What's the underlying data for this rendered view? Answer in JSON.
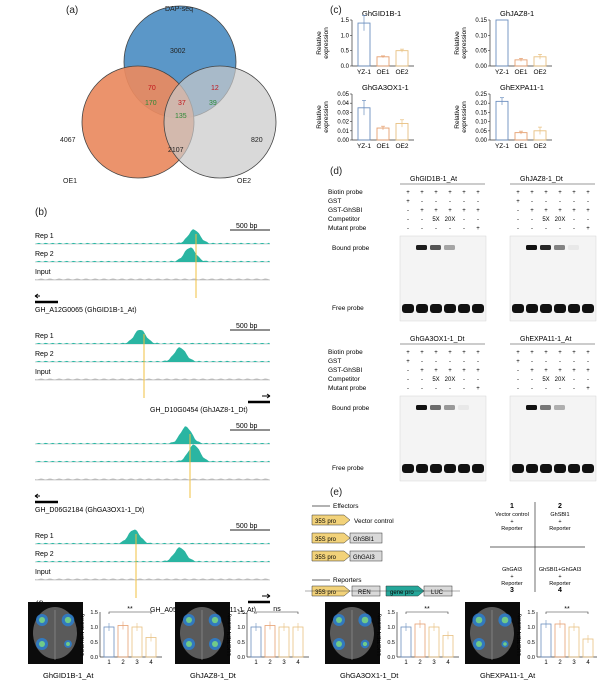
{
  "panels": {
    "a": "(a)",
    "b": "(b)",
    "c": "(c)",
    "d": "(d)",
    "e": "(e)",
    "f": "(f)"
  },
  "venn": {
    "sets": [
      "DAP-seq",
      "OE1",
      "OE2"
    ],
    "colors": {
      "dap": "#5b97c8",
      "oe1": "#e98a5f",
      "oe2": "#c9c9c9"
    },
    "regions": {
      "dap_only": "3002",
      "oe1_only": "4067",
      "oe2_only": "820",
      "dap_oe1_a": "70",
      "dap_oe1_b": "170",
      "dap_oe2_a": "12",
      "dap_oe2_b": "39",
      "all_a": "37",
      "all_b": "135",
      "oe1_oe2": "2107"
    }
  },
  "tracks": {
    "groups": [
      {
        "rows": [
          "Rep 1",
          "Rep 2",
          "Input"
        ],
        "scale": "500 bp",
        "gene": "GH_A12G0065 (GhGID1B-1_At)"
      },
      {
        "rows": [
          "Rep 1",
          "Rep 2",
          "Input"
        ],
        "scale": "500 bp",
        "gene": "GH_D10G0454 (GhJAZ8-1_Dt)"
      },
      {
        "rows": [
          "",
          "",
          ""
        ],
        "scale": "500 bp",
        "gene": "GH_D06G2184 (GhGA3OX1-1_Dt)"
      },
      {
        "rows": [
          "Rep 1",
          "Rep 2",
          "Input"
        ],
        "scale": "500 bp",
        "gene": "GH_A05G1837 (GhEXPA11-1_At)"
      }
    ],
    "signal_color": "#2ab5a2"
  },
  "expression": {
    "ylabel": "Relative expression",
    "categories": [
      "YZ-1",
      "OE1",
      "OE2"
    ],
    "colors": [
      "#6c8fbf",
      "#e6a070",
      "#e8c080"
    ],
    "charts": [
      {
        "title": "GhGID1B-1",
        "ticks": [
          "1.5",
          "1.0",
          "0.5",
          "0.0"
        ]
      },
      {
        "title": "GhJAZ8-1",
        "ticks": [
          "0.15",
          "0.10",
          "0.05",
          "0.00"
        ]
      },
      {
        "title": "GhGA3OX1-1",
        "ticks": [
          "0.05",
          "0.04",
          "0.03",
          "0.02",
          "0.01",
          "0.00"
        ]
      },
      {
        "title": "GhEXPA11-1",
        "ticks": [
          "0.25",
          "0.20",
          "0.15",
          "0.10",
          "0.05",
          "0.00"
        ]
      }
    ]
  },
  "emsa": {
    "row_labels": [
      "Biotin probe",
      "GST",
      "GST-GhSBI",
      "Competitor",
      "Mutant probe"
    ],
    "band_labels": {
      "bound": "Bound probe",
      "free": "Free probe"
    },
    "blots": [
      {
        "title": "GhGID1B-1_At"
      },
      {
        "title": "GhJAZ8-1_Dt"
      },
      {
        "title": "GhGA3OX1-1_Dt"
      },
      {
        "title": "GhEXPA11-1_At"
      }
    ],
    "lanes": {
      "biotin": [
        "+",
        "+",
        "+",
        "+",
        "+",
        "+"
      ],
      "gst": [
        "+",
        "-",
        "-",
        "-",
        "-",
        "-"
      ],
      "gst_ghsbi": [
        "-",
        "+",
        "+",
        "+",
        "+",
        "+"
      ],
      "competitor": [
        "-",
        "-",
        "5X",
        "20X",
        "-",
        "-"
      ],
      "mutant": [
        "-",
        "-",
        "-",
        "-",
        "-",
        "+"
      ]
    }
  },
  "constructs": {
    "effectors_label": "Effectors",
    "reporters_label": "Reporters",
    "promoter": "35S pro",
    "effectors": [
      "Vector control",
      "GhSBI1",
      "GhGAI3"
    ],
    "reporter_parts": [
      "35S pro",
      "REN",
      "gene pro",
      "LUC"
    ],
    "grid": [
      {
        "n": "1",
        "text": "Vector control + Reporter"
      },
      {
        "n": "2",
        "text": "GhSBI1 + Reporter"
      },
      {
        "n": "3",
        "text": "GhGAI3 + Reporter"
      },
      {
        "n": "4",
        "text": "GhSBI1+GhGAI3 + Reporter"
      }
    ],
    "colors": {
      "pro": "#f2d27a",
      "effector": "#d9d9d9",
      "ren": "#d9d9d9",
      "genepro": "#25a79a",
      "luc": "#d9d9d9"
    }
  },
  "luc": {
    "ylabel": "LUC/REN activity",
    "categories": [
      "1",
      "2",
      "3",
      "4"
    ],
    "ticks": [
      "1.5",
      "1.0",
      "0.5",
      "0.0"
    ],
    "ylim": [
      0,
      1.5
    ],
    "items": [
      {
        "gene": "GhGID1B-1_At",
        "sig": "**",
        "values": [
          1.0,
          1.05,
          1.0,
          0.65
        ]
      },
      {
        "gene": "GhJAZ8-1_Dt",
        "sig": "ns",
        "values": [
          1.0,
          1.05,
          1.0,
          1.0
        ]
      },
      {
        "gene": "GhGA3OX1-1_Dt",
        "sig": "**",
        "values": [
          1.0,
          1.1,
          1.0,
          0.72
        ]
      },
      {
        "gene": "GhEXPA11-1_At",
        "sig": "**",
        "values": [
          1.1,
          1.1,
          1.0,
          0.6
        ]
      }
    ],
    "bar_colors": [
      "#6c8fbf",
      "#e6a070",
      "#e8c080",
      "#e8c080"
    ]
  },
  "chart_data": [
    {
      "type": "bar",
      "title": "GhGID1B-1",
      "categories": [
        "YZ-1",
        "OE1",
        "OE2"
      ],
      "values": [
        1.4,
        0.3,
        0.5
      ],
      "errors": [
        0.25,
        0.03,
        0.05
      ],
      "ylabel": "Relative expression",
      "ylim": [
        0,
        1.5
      ]
    },
    {
      "type": "bar",
      "title": "GhJAZ8-1",
      "categories": [
        "YZ-1",
        "OE1",
        "OE2"
      ],
      "values": [
        0.15,
        0.02,
        0.03
      ],
      "errors": [
        0.0,
        0.005,
        0.008
      ],
      "ylabel": "Relative expression",
      "ylim": [
        0,
        0.15
      ]
    },
    {
      "type": "bar",
      "title": "GhGA3OX1-1",
      "categories": [
        "YZ-1",
        "OE1",
        "OE2"
      ],
      "values": [
        0.035,
        0.013,
        0.018
      ],
      "errors": [
        0.008,
        0.002,
        0.004
      ],
      "ylabel": "Relative expression",
      "ylim": [
        0,
        0.05
      ]
    },
    {
      "type": "bar",
      "title": "GhEXPA11-1",
      "categories": [
        "YZ-1",
        "OE1",
        "OE2"
      ],
      "values": [
        0.21,
        0.04,
        0.05
      ],
      "errors": [
        0.02,
        0.008,
        0.02
      ],
      "ylabel": "Relative expression",
      "ylim": [
        0,
        0.25
      ]
    }
  ]
}
